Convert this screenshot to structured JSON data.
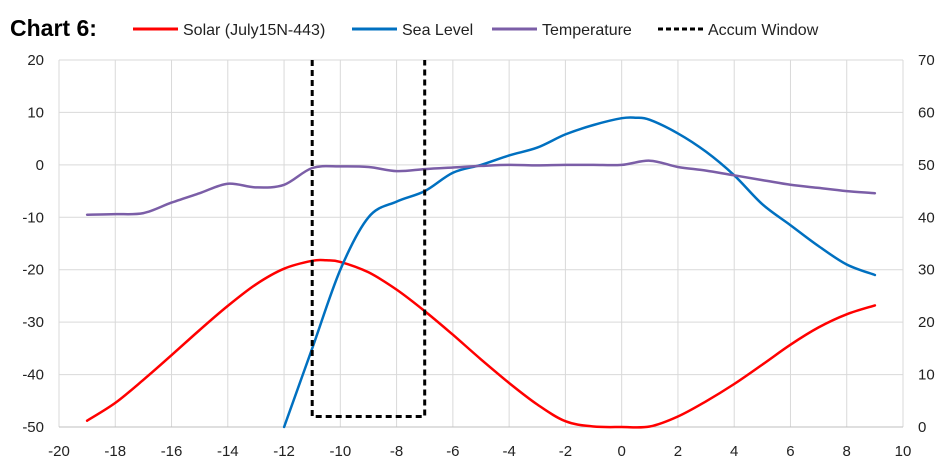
{
  "chart_data": {
    "type": "line",
    "title": "Chart 6:",
    "xlabel": "",
    "ylabel": "",
    "xlim": [
      -20,
      10
    ],
    "ylim": [
      -50,
      20
    ],
    "y2lim": [
      0,
      70
    ],
    "x_ticks": [
      "-20",
      "-18",
      "-16",
      "-14",
      "-12",
      "-10",
      "-8",
      "-6",
      "-4",
      "-2",
      "0",
      "2",
      "4",
      "6",
      "8",
      "10"
    ],
    "y_ticks": [
      "20",
      "10",
      "0",
      "-10",
      "-20",
      "-30",
      "-40",
      "-50"
    ],
    "y2_ticks": [
      "70",
      "60",
      "50",
      "40",
      "30",
      "20",
      "10",
      "0"
    ],
    "grid": true,
    "legend_position": "top",
    "series": [
      {
        "name": "Solar (July15N-443)",
        "color": "#ff0000",
        "axis": "left",
        "x": [
          -19,
          -18,
          -17,
          -16,
          -15,
          -14,
          -13,
          -12,
          -11,
          -10.5,
          -10,
          -9,
          -8,
          -7,
          -6,
          -5,
          -4,
          -3,
          -2,
          -1,
          0,
          1,
          2,
          3,
          4,
          5,
          6,
          7,
          8,
          9
        ],
        "y": [
          -48.8,
          -45.4,
          -41,
          -36.3,
          -31.5,
          -26.9,
          -22.8,
          -19.8,
          -18.3,
          -18.2,
          -18.5,
          -20.5,
          -23.8,
          -27.9,
          -32.4,
          -37.1,
          -41.6,
          -45.7,
          -48.9,
          -49.9,
          -50,
          -49.9,
          -48,
          -45.1,
          -41.8,
          -38.1,
          -34.3,
          -31,
          -28.5,
          -26.8
        ],
        "dashed": false
      },
      {
        "name": "Sea Level",
        "color": "#0070c0",
        "axis": "right",
        "x": [
          -12,
          -11,
          -10,
          -9,
          -8,
          -7,
          -6,
          -5,
          -4,
          -3,
          -2,
          -1,
          0,
          0.5,
          1,
          2,
          3,
          4,
          5,
          6,
          7,
          8,
          9
        ],
        "y": [
          0,
          15,
          30,
          40,
          43,
          45,
          48.5,
          50,
          51.8,
          53.3,
          55.8,
          57.6,
          58.9,
          59,
          58.6,
          56,
          52.5,
          48,
          42.5,
          38.5,
          34.5,
          31,
          29
        ],
        "dashed": false
      },
      {
        "name": "Temperature",
        "color": "#7b5ea7",
        "axis": "right",
        "x": [
          -19,
          -18,
          -17,
          -16,
          -15,
          -14,
          -13,
          -12,
          -11,
          -10,
          -9,
          -8,
          -7,
          -6,
          -5,
          -4,
          -3,
          -2,
          -1,
          0,
          1,
          2,
          3,
          4,
          5,
          6,
          7,
          8,
          9
        ],
        "y": [
          40.5,
          40.6,
          40.8,
          42.8,
          44.6,
          46.4,
          45.7,
          46.2,
          49.4,
          49.7,
          49.6,
          48.8,
          49.2,
          49.5,
          49.8,
          50,
          49.9,
          50,
          50,
          50,
          50.8,
          49.6,
          48.9,
          48,
          47.1,
          46.2,
          45.6,
          45,
          44.6
        ],
        "dashed": false
      },
      {
        "name": "Accum Window",
        "color": "#000000",
        "axis": "right",
        "x": [
          -11,
          -11,
          -7,
          -7
        ],
        "y": [
          70,
          2,
          2,
          70
        ],
        "dashed": true
      }
    ]
  }
}
